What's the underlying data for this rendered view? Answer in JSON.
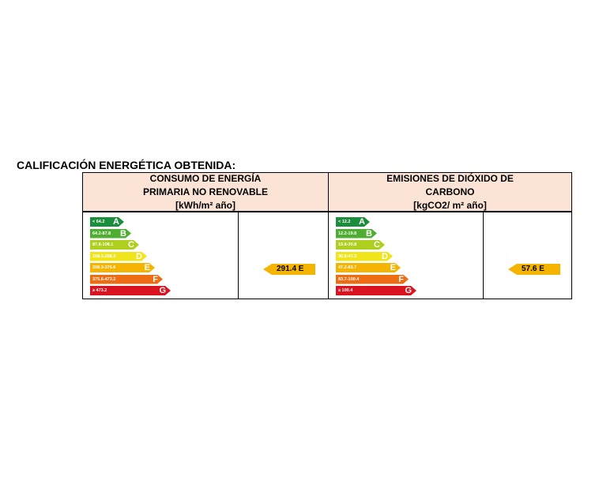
{
  "title": "CALIFICACIÓN ENERGÉTICA OBTENIDA:",
  "colors": {
    "A": "#1b8e3c",
    "B": "#4fae32",
    "C": "#aecf1e",
    "D": "#f0e41b",
    "E": "#f5b400",
    "F": "#ec6d12",
    "G": "#d9131f",
    "header_bg": "#fbe4d5"
  },
  "energy": {
    "header": [
      "CONSUMO DE ENERGÍA",
      "PRIMARIA NO RENOVABLE",
      "[kWh/m² año]"
    ],
    "scale": [
      {
        "letter": "A",
        "range": "< 64.2"
      },
      {
        "letter": "B",
        "range": "64.2-87.8"
      },
      {
        "letter": "C",
        "range": "87.8-108.1"
      },
      {
        "letter": "D",
        "range": "108.1-208.3"
      },
      {
        "letter": "E",
        "range": "208.3-375.6"
      },
      {
        "letter": "F",
        "range": "375.6-473.2"
      },
      {
        "letter": "G",
        "range": "≥ 473.2"
      }
    ],
    "result_value": "291.4",
    "result_letter": "E",
    "result_label": "291.4 E"
  },
  "emissions": {
    "header": [
      "EMISIONES DE DIÓXIDO DE",
      "CARBONO",
      "[kgCO2/ m² año]"
    ],
    "scale": [
      {
        "letter": "A",
        "range": "< 12.2"
      },
      {
        "letter": "B",
        "range": "12.2-19.8"
      },
      {
        "letter": "C",
        "range": "19.8-30.8"
      },
      {
        "letter": "D",
        "range": "30.8-47.2"
      },
      {
        "letter": "E",
        "range": "47.2-83.7"
      },
      {
        "letter": "F",
        "range": "83.7-100.4"
      },
      {
        "letter": "G",
        "range": "≥ 100.4"
      }
    ],
    "result_value": "57.6",
    "result_letter": "E",
    "result_label": "57.6 E"
  }
}
